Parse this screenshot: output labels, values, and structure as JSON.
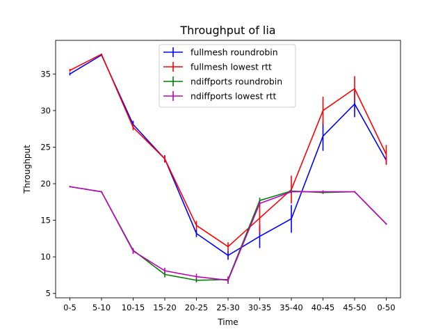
{
  "chart_data": {
    "type": "line",
    "title": "Throughput of lia",
    "xlabel": "Time",
    "ylabel": "Throughput",
    "categories": [
      "0-5",
      "5-10",
      "10-15",
      "15-20",
      "20-25",
      "25-30",
      "30-35",
      "35-40",
      "40-45",
      "45-50",
      "0-50"
    ],
    "yticks": [
      5,
      10,
      15,
      20,
      25,
      30,
      35
    ],
    "ylim": [
      4.4,
      39.6
    ],
    "grid": false,
    "legend_position": "upper-center",
    "series": [
      {
        "name": "fullmesh roundrobin",
        "color": "#0000ff",
        "values": [
          35.0,
          37.6,
          28.1,
          23.4,
          13.2,
          10.2,
          12.8,
          15.2,
          26.5,
          30.9,
          23.2
        ],
        "errors": [
          0.2,
          0.1,
          0.5,
          0.5,
          0.5,
          0.6,
          1.6,
          1.9,
          2.0,
          1.8,
          0.6
        ]
      },
      {
        "name": "fullmesh lowest rtt",
        "color": "#ff0000",
        "values": [
          35.5,
          37.7,
          27.7,
          23.4,
          14.3,
          11.4,
          15.3,
          19.2,
          30.0,
          33.0,
          24.0
        ],
        "errors": [
          0.2,
          0.1,
          0.4,
          0.5,
          0.6,
          0.6,
          2.0,
          1.9,
          1.9,
          1.7,
          1.3
        ]
      },
      {
        "name": "ndiffports roundrobin",
        "color": "#008000",
        "values": [
          19.6,
          18.9,
          10.9,
          7.6,
          6.8,
          6.9,
          17.7,
          19.0,
          18.8,
          18.9,
          14.5
        ],
        "errors": [
          0.1,
          0.1,
          0.3,
          0.4,
          0.3,
          0.4,
          0.4,
          0.3,
          0.2,
          0.1,
          0.1
        ]
      },
      {
        "name": "ndiffports lowest rtt",
        "color": "#bf00bf",
        "values": [
          19.6,
          18.9,
          10.8,
          8.1,
          7.3,
          6.8,
          17.3,
          18.9,
          18.9,
          18.9,
          14.5
        ],
        "errors": [
          0.1,
          0.1,
          0.4,
          0.4,
          0.4,
          0.5,
          0.3,
          0.3,
          0.2,
          0.1,
          0.1
        ]
      }
    ]
  }
}
